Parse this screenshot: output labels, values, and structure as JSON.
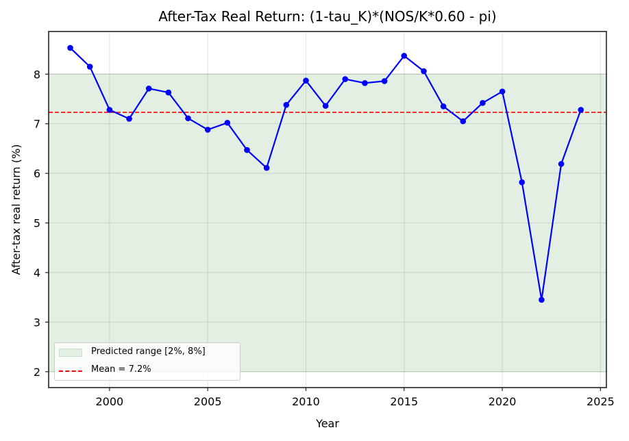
{
  "chart_data": {
    "type": "line",
    "title": "After-Tax Real Return: (1-tau_K)*(NOS/K*0.60 - pi)",
    "xlabel": "Year",
    "ylabel": "After-tax real return (%)",
    "x": [
      1998,
      1999,
      2000,
      2001,
      2002,
      2003,
      2004,
      2005,
      2006,
      2007,
      2008,
      2009,
      2010,
      2011,
      2012,
      2013,
      2014,
      2015,
      2016,
      2017,
      2018,
      2019,
      2020,
      2021,
      2022,
      2023,
      2024
    ],
    "series": [
      {
        "name": "After-tax real return",
        "color": "#0000ff",
        "marker": "circle",
        "values": [
          8.53,
          8.15,
          7.28,
          7.1,
          7.71,
          7.63,
          7.11,
          6.88,
          7.02,
          6.47,
          6.11,
          7.38,
          7.87,
          7.36,
          7.9,
          7.82,
          7.86,
          8.37,
          8.06,
          7.35,
          7.05,
          7.42,
          7.65,
          5.82,
          3.45,
          6.19,
          7.28
        ]
      }
    ],
    "reference_lines": [
      {
        "name": "Mean = 7.2%",
        "y": 7.23,
        "color": "#ff0000",
        "style": "dashed"
      }
    ],
    "shaded_regions": [
      {
        "name": "Predicted range [2%, 8%]",
        "y0": 2,
        "y1": 8,
        "color": "#e3efe3"
      }
    ],
    "xlim": [
      1996.9,
      2025.3
    ],
    "ylim": [
      1.68,
      8.86
    ],
    "xticks": [
      2000,
      2005,
      2010,
      2015,
      2020,
      2025
    ],
    "yticks": [
      2,
      3,
      4,
      5,
      6,
      7,
      8
    ],
    "grid": true,
    "legend_position": "lower left"
  },
  "legend": {
    "items": [
      {
        "label": "Predicted range [2%, 8%]",
        "type": "patch"
      },
      {
        "label": "Mean = 7.2%",
        "type": "dashed-line"
      }
    ]
  }
}
